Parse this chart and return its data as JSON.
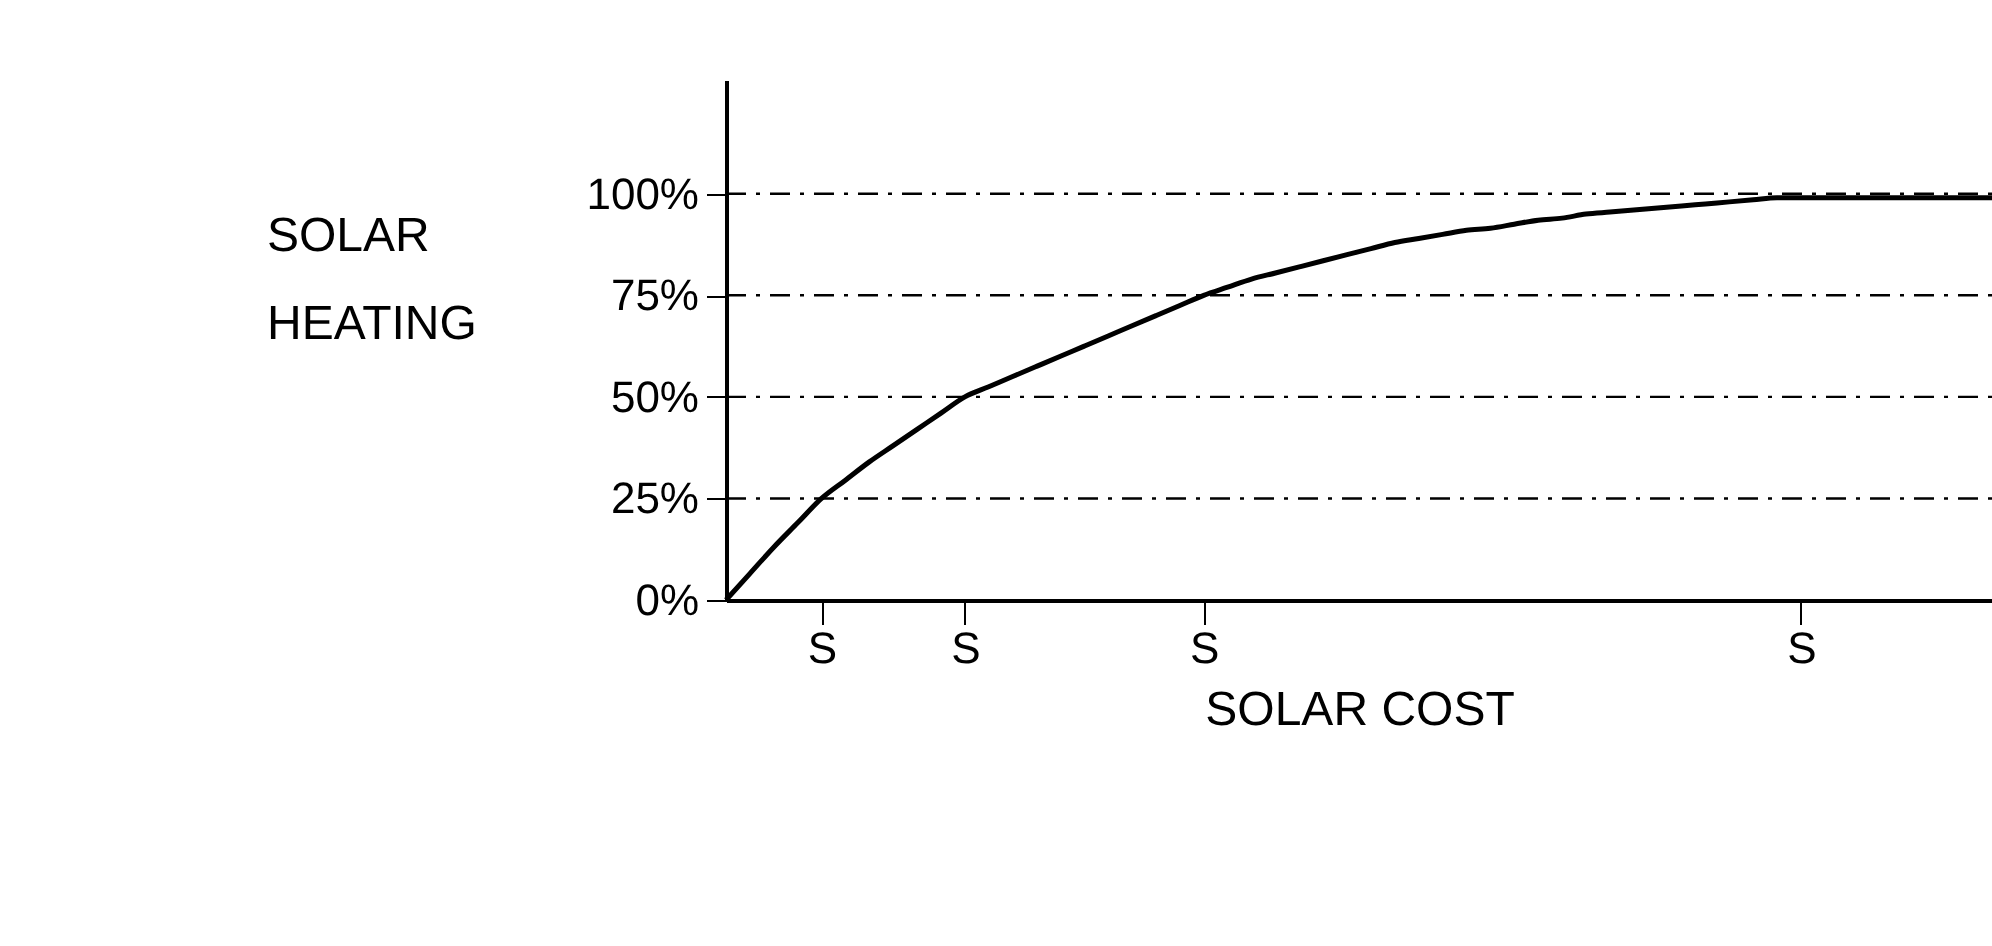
{
  "chart_data": {
    "type": "line",
    "xlabel": "SOLAR COST",
    "ylabel": "SOLAR HEATING",
    "categories": [
      null,
      null,
      null,
      null,
      "S",
      null,
      null,
      null,
      null,
      null,
      "S",
      null,
      null,
      null,
      null,
      null,
      null,
      null,
      null,
      null,
      "S",
      null,
      null,
      null,
      null,
      null,
      null,
      null,
      null,
      null,
      null,
      null,
      null,
      null,
      null,
      null,
      null,
      null,
      null,
      null,
      null,
      null,
      null,
      null,
      null,
      "S",
      null,
      null,
      null,
      null,
      null,
      null,
      null,
      null
    ],
    "series": [
      {
        "color": "#000000",
        "values": [
          0,
          6.5,
          13,
          19,
          25,
          29.5,
          34,
          38,
          42,
          46,
          50,
          52.5,
          55,
          57.5,
          60,
          62.5,
          65,
          67.5,
          70,
          72.5,
          75,
          77,
          79,
          80.5,
          82,
          83.5,
          85,
          86.5,
          88,
          89,
          90,
          91,
          91.5,
          92.5,
          93.5,
          94,
          95,
          95.5,
          96,
          96.5,
          97,
          97.5,
          98,
          98.5,
          99,
          99,
          99,
          99,
          99,
          99,
          99,
          99,
          99,
          99
        ]
      }
    ],
    "ylim": [
      0,
      128
    ],
    "yticks": [
      {
        "value": 0,
        "label": "0%"
      },
      {
        "value": 25,
        "label": "25%"
      },
      {
        "value": 50,
        "label": "50%"
      },
      {
        "value": 75,
        "label": "75%"
      },
      {
        "value": 100,
        "label": "100%"
      }
    ],
    "ref_lines": [
      {
        "axis": "y",
        "value": 25,
        "line_style": "dashed"
      },
      {
        "axis": "y",
        "value": 50,
        "line_style": "dashed"
      },
      {
        "axis": "y",
        "value": 75,
        "line_style": "dashed"
      },
      {
        "axis": "y",
        "value": 100,
        "line_style": "dashed"
      }
    ],
    "grid": false,
    "legend": false,
    "marker": "none",
    "line_style": "solid"
  }
}
